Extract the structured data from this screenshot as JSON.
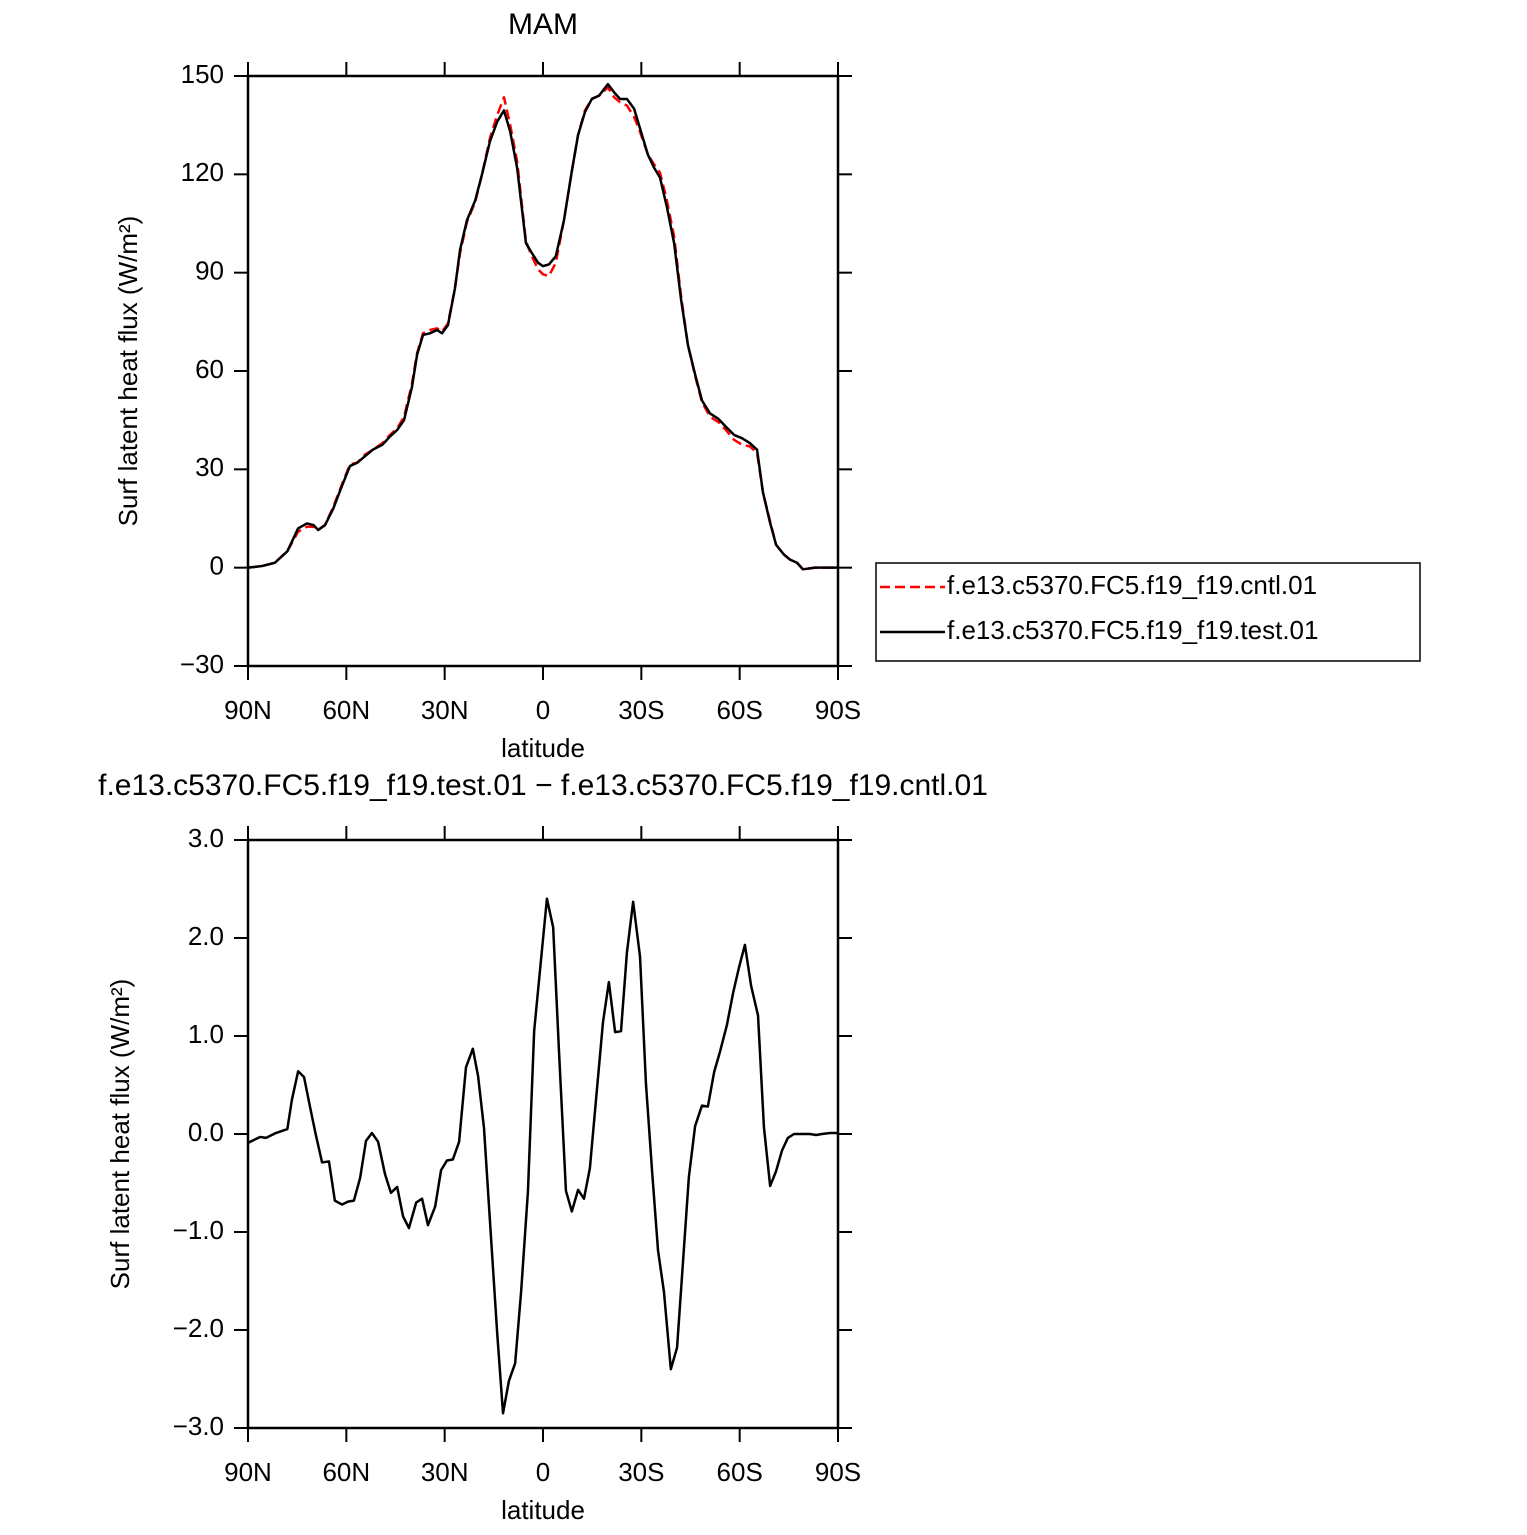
{
  "chart_data": [
    {
      "type": "line",
      "title": "MAM",
      "xlabel": "latitude",
      "ylabel": "Surf latent heat flux (W/m²)",
      "xlim": [
        90,
        -90
      ],
      "xticks": [
        {
          "value": 90,
          "label": "90N"
        },
        {
          "value": 60,
          "label": "60N"
        },
        {
          "value": 30,
          "label": "30N"
        },
        0,
        {
          "value": -30,
          "label": "30S"
        },
        {
          "value": -60,
          "label": "60S"
        },
        {
          "value": -90,
          "label": "90S"
        }
      ],
      "ylim": [
        -30,
        150
      ],
      "yticks": [
        {
          "value": -30,
          "label": "−30"
        },
        0,
        30,
        60,
        90,
        120,
        150
      ],
      "legend": "right",
      "x": [
        90,
        85.7,
        81.8,
        78,
        74.7,
        72,
        70,
        68.6,
        66.5,
        64,
        61.3,
        58.9,
        56.7,
        54.3,
        51.9,
        49,
        46.7,
        44.5,
        42.4,
        40,
        38.4,
        36.6,
        34.5,
        32.3,
        30.8,
        29,
        26.9,
        25.3,
        23.2,
        20.7,
        18.6,
        16.2,
        14,
        11.9,
        10,
        7.9,
        5.2,
        3.4,
        1.5,
        0,
        -1.8,
        -3.9,
        -6.4,
        -8.8,
        -10.7,
        -12.8,
        -14.9,
        -17.1,
        -19.8,
        -21.7,
        -23.5,
        -25.6,
        -27.8,
        -29.6,
        -32,
        -33.9,
        -35.7,
        -37.8,
        -40,
        -42.1,
        -44.2,
        -46.4,
        -48.5,
        -51,
        -53.4,
        -55.8,
        -58.3,
        -60.7,
        -63.1,
        -65.3,
        -67.1,
        -69.2,
        -71.1,
        -73.5,
        -75.3,
        -77.5,
        -79.3,
        -83,
        -90
      ],
      "series": [
        {
          "name": "f.e13.c5370.FC5.f19_f19.cntl.01",
          "color": "#ff0000",
          "linestyle": "dashed",
          "values": [
            0,
            0.5,
            1.5,
            5,
            11,
            12.5,
            12.5,
            11.5,
            13,
            18.5,
            25.5,
            31.5,
            32,
            34.5,
            36,
            38,
            40.5,
            42.5,
            46,
            56,
            65.5,
            71.5,
            72.5,
            73,
            72,
            74.5,
            85,
            96,
            105.5,
            111.5,
            120,
            131,
            138,
            143.5,
            135,
            124,
            99.5,
            95,
            91,
            89.5,
            89,
            93,
            106,
            121,
            132,
            139.5,
            143,
            144,
            146.5,
            143.5,
            142,
            141,
            137.5,
            133,
            126,
            123,
            120.5,
            112,
            101,
            83,
            68,
            58.5,
            50.5,
            46,
            44.5,
            42,
            39,
            37.5,
            37,
            35,
            23,
            14.5,
            7,
            4,
            2.5,
            1.5,
            -0.5,
            0,
            0
          ]
        },
        {
          "name": "f.e13.c5370.FC5.f19_f19.test.01",
          "color": "#000000",
          "linestyle": "solid",
          "values": [
            0,
            0.5,
            1.5,
            5,
            12,
            13.5,
            13,
            11.5,
            13,
            18,
            25,
            31,
            32,
            34,
            36,
            37.5,
            40,
            42,
            45,
            55,
            65,
            71,
            71.5,
            72.5,
            71.5,
            74,
            85,
            97,
            106,
            112,
            120,
            130,
            136,
            139.5,
            133,
            122,
            99,
            96,
            93,
            92,
            92.5,
            95,
            106,
            121,
            132,
            139,
            143,
            144,
            147.5,
            145,
            143,
            143,
            140,
            134,
            126,
            122,
            119,
            110,
            99,
            82,
            68,
            59,
            51,
            47,
            45.5,
            43,
            40.5,
            39.5,
            38,
            36,
            23,
            14,
            7,
            4,
            2.5,
            1.5,
            -0.5,
            0,
            0
          ]
        }
      ]
    },
    {
      "type": "line",
      "title": "f.e13.c5370.FC5.f19_f19.test.01 − f.e13.c5370.FC5.f19_f19.cntl.01",
      "xlabel": "latitude",
      "ylabel": "Surf latent heat flux (W/m²)",
      "xlim": [
        90,
        -90
      ],
      "xticks": [
        {
          "value": 90,
          "label": "90N"
        },
        {
          "value": 60,
          "label": "60N"
        },
        {
          "value": 30,
          "label": "30N"
        },
        0,
        {
          "value": -30,
          "label": "30S"
        },
        {
          "value": -60,
          "label": "60S"
        },
        {
          "value": -90,
          "label": "90S"
        }
      ],
      "ylim": [
        -3,
        3
      ],
      "yticks": [
        {
          "value": -3,
          "label": "−3.0"
        },
        {
          "value": -2,
          "label": "−2.0"
        },
        {
          "value": -1,
          "label": "−1.0"
        },
        {
          "value": 0,
          "label": "0.0"
        },
        {
          "value": 1,
          "label": "1.0"
        },
        {
          "value": 2,
          "label": "2.0"
        },
        {
          "value": 3,
          "label": "3.0"
        }
      ],
      "color": "#000000",
      "x": [
        90,
        86.3,
        84.5,
        81.5,
        78,
        76.6,
        74.7,
        72.9,
        71.1,
        69.3,
        67.4,
        65.3,
        63.5,
        61.3,
        59.5,
        57.7,
        55.8,
        54,
        52.2,
        50.3,
        48.2,
        46.4,
        44.5,
        42.7,
        40.9,
        38.7,
        36.9,
        35.1,
        32.9,
        31.1,
        29.3,
        27.5,
        25.6,
        23.5,
        21.4,
        19.8,
        18,
        16.2,
        14,
        12.2,
        10.4,
        8.5,
        6.7,
        4.6,
        2.7,
        0.6,
        -1.2,
        -3.1,
        -4.9,
        -7,
        -8.8,
        -10.7,
        -12.5,
        -14.3,
        -16.2,
        -18.3,
        -20.1,
        -22,
        -23.8,
        -25.6,
        -27.5,
        -29.6,
        -31.4,
        -33.3,
        -35.1,
        -36.9,
        -39,
        -40.9,
        -42.7,
        -44.5,
        -46.4,
        -48.5,
        -50.3,
        -52.2,
        -54,
        -56.1,
        -58,
        -59.8,
        -61.6,
        -63.5,
        -65.6,
        -67.4,
        -69.3,
        -71.1,
        -72.9,
        -74.7,
        -76.6,
        -81.4,
        -83.3,
        -85.1,
        -87.6,
        -90
      ],
      "values": [
        -0.09,
        -0.03,
        -0.04,
        0.01,
        0.05,
        0.35,
        0.64,
        0.58,
        0.28,
        -0.01,
        -0.29,
        -0.28,
        -0.68,
        -0.72,
        -0.69,
        -0.68,
        -0.45,
        -0.07,
        0.01,
        -0.08,
        -0.41,
        -0.6,
        -0.54,
        -0.84,
        -0.96,
        -0.7,
        -0.66,
        -0.93,
        -0.74,
        -0.37,
        -0.27,
        -0.26,
        -0.08,
        0.68,
        0.87,
        0.59,
        0.06,
        -0.88,
        -2.02,
        -2.85,
        -2.52,
        -2.34,
        -1.62,
        -0.59,
        1.05,
        1.78,
        2.4,
        2.11,
        0.83,
        -0.58,
        -0.79,
        -0.57,
        -0.66,
        -0.35,
        0.36,
        1.14,
        1.55,
        1.04,
        1.05,
        1.85,
        2.37,
        1.81,
        0.52,
        -0.39,
        -1.19,
        -1.61,
        -2.4,
        -2.18,
        -1.31,
        -0.44,
        0.08,
        0.29,
        0.28,
        0.63,
        0.84,
        1.11,
        1.44,
        1.7,
        1.93,
        1.51,
        1.21,
        0.07,
        -0.53,
        -0.38,
        -0.17,
        -0.04,
        0,
        0,
        -0.01,
        0,
        0.01,
        0.01
      ]
    }
  ]
}
